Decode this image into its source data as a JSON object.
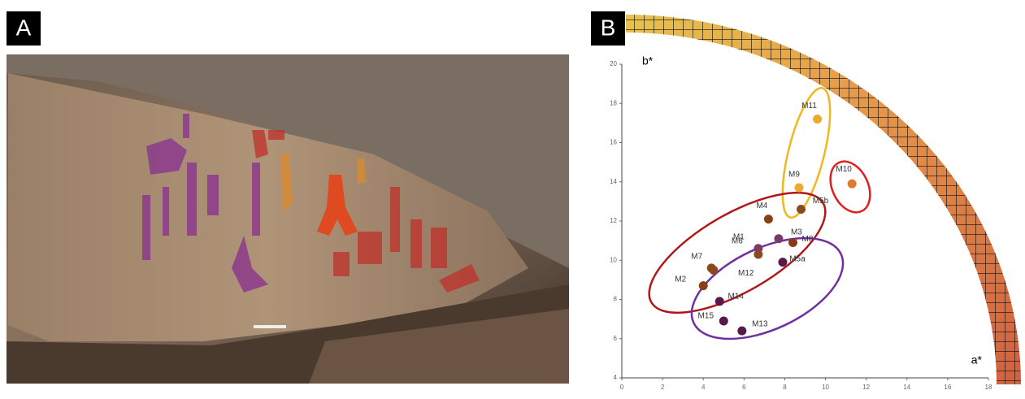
{
  "panel_labels": [
    "A",
    "B"
  ],
  "chart_data": {
    "type": "scatter",
    "xlabel": "a*",
    "ylabel": "b*",
    "labels": [
      "M11",
      "M10",
      "M9",
      "M5b",
      "M4",
      "M3",
      "M1",
      "M8",
      "M6",
      "M5a",
      "M7",
      "M12",
      "M2",
      "M14",
      "M15",
      "M13"
    ],
    "x": [
      9.6,
      11.3,
      8.7,
      8.8,
      7.2,
      7.7,
      6.7,
      8.4,
      6.7,
      7.9,
      4.4,
      4.5,
      4.0,
      4.8,
      5.0,
      5.9
    ],
    "y": [
      17.2,
      13.9,
      13.7,
      12.6,
      12.1,
      11.1,
      10.6,
      10.9,
      10.3,
      9.9,
      9.6,
      9.5,
      8.7,
      7.9,
      6.9,
      6.4
    ],
    "colors": [
      "#f0a830",
      "#e07a2c",
      "#f0a830",
      "#8a4a1c",
      "#8a4016",
      "#7a3a6a",
      "#7a3a6a",
      "#8a3a18",
      "#8a4a1c",
      "#5a1848",
      "#8a4a1c",
      "#8a4a1c",
      "#8a4016",
      "#5a1848",
      "#5a1848",
      "#5a1848"
    ],
    "xlim": [
      0,
      18
    ],
    "ylim": [
      4,
      20
    ],
    "xticks": [
      0,
      2,
      4,
      6,
      8,
      10,
      12,
      14,
      16,
      18
    ],
    "yticks": [
      4,
      6,
      8,
      10,
      12,
      14,
      16,
      18,
      20
    ]
  }
}
